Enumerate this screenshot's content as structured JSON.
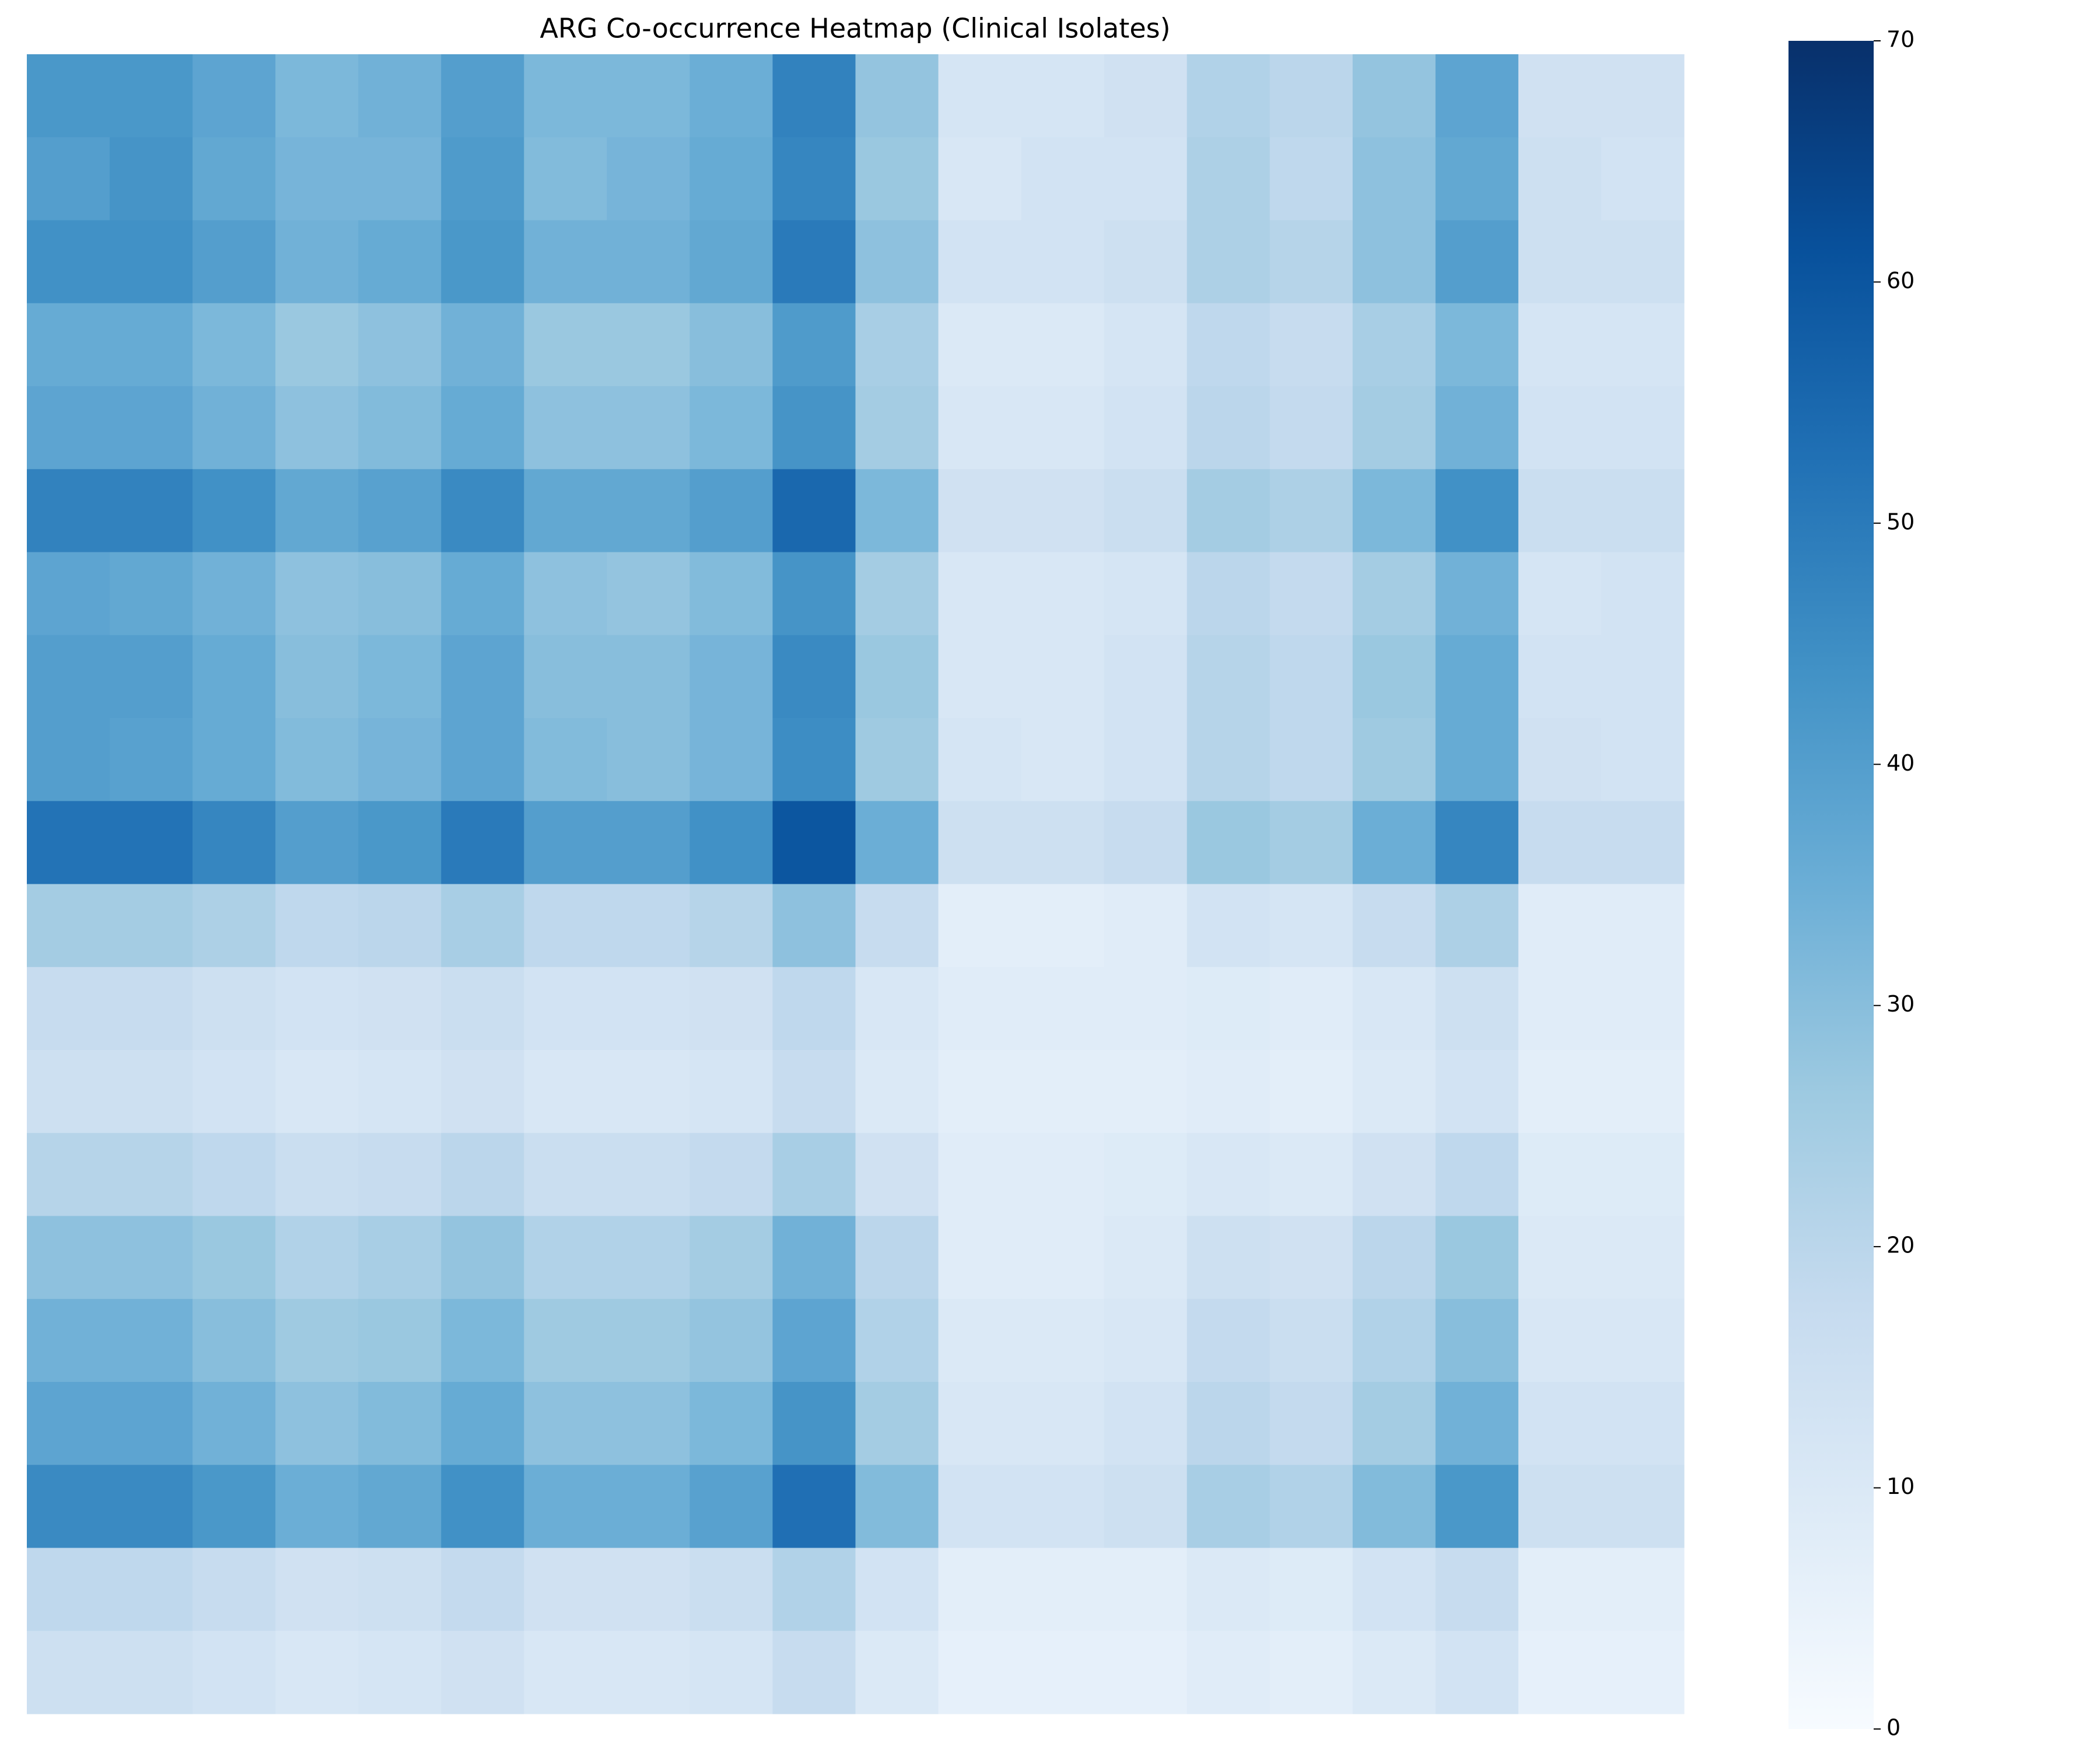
{
  "chart_data": {
    "type": "heatmap",
    "title": "ARG Co-occurrence Heatmap (Clinical Isolates)",
    "colormap": [
      "#f7fbff",
      "#deebf7",
      "#c6dbef",
      "#9ecae1",
      "#6baed6",
      "#4292c6",
      "#2171b5",
      "#08519c",
      "#08306b"
    ],
    "zlim": [
      0,
      70
    ],
    "zticks": [
      0,
      10,
      20,
      30,
      40,
      50,
      60,
      70
    ],
    "z": [
      [
        42,
        42,
        38,
        32,
        34,
        40,
        32,
        32,
        35,
        48,
        28,
        12,
        12,
        14,
        22,
        20,
        28,
        38,
        14,
        14
      ],
      [
        40,
        43,
        37,
        33,
        33,
        41,
        31,
        33,
        36,
        47,
        27,
        11,
        13,
        13,
        23,
        19,
        29,
        37,
        15,
        13
      ],
      [
        44,
        44,
        40,
        34,
        36,
        42,
        34,
        34,
        37,
        50,
        29,
        13,
        13,
        15,
        23,
        21,
        29,
        40,
        15,
        15
      ],
      [
        36,
        36,
        32,
        27,
        29,
        34,
        27,
        27,
        30,
        41,
        24,
        10,
        10,
        12,
        19,
        17,
        24,
        32,
        12,
        12
      ],
      [
        38,
        38,
        34,
        29,
        31,
        36,
        29,
        29,
        32,
        43,
        25,
        11,
        11,
        13,
        20,
        18,
        25,
        34,
        13,
        13
      ],
      [
        48,
        48,
        44,
        37,
        39,
        46,
        37,
        37,
        40,
        55,
        32,
        14,
        14,
        16,
        25,
        23,
        32,
        44,
        16,
        16
      ],
      [
        38,
        37,
        34,
        29,
        30,
        36,
        29,
        28,
        31,
        43,
        25,
        11,
        11,
        12,
        20,
        18,
        25,
        34,
        12,
        13
      ],
      [
        40,
        40,
        36,
        30,
        32,
        38,
        30,
        30,
        33,
        46,
        27,
        11,
        11,
        13,
        21,
        19,
        27,
        36,
        13,
        13
      ],
      [
        40,
        39,
        36,
        31,
        33,
        38,
        31,
        30,
        33,
        45,
        26,
        12,
        11,
        13,
        21,
        19,
        26,
        36,
        14,
        13
      ],
      [
        52,
        52,
        47,
        40,
        42,
        50,
        40,
        40,
        44,
        60,
        35,
        15,
        15,
        17,
        27,
        25,
        35,
        47,
        17,
        17
      ],
      [
        25,
        25,
        23,
        19,
        20,
        24,
        19,
        19,
        21,
        29,
        17,
        7,
        7,
        8,
        13,
        12,
        17,
        23,
        8,
        8
      ],
      [
        17,
        17,
        15,
        13,
        14,
        16,
        13,
        13,
        14,
        19,
        11,
        8,
        8,
        8,
        9,
        8,
        11,
        15,
        8,
        8
      ],
      [
        15,
        15,
        13,
        11,
        12,
        14,
        11,
        11,
        12,
        17,
        10,
        7,
        7,
        7,
        8,
        7,
        10,
        13,
        7,
        7
      ],
      [
        21,
        21,
        19,
        16,
        17,
        20,
        16,
        16,
        18,
        24,
        14,
        8,
        8,
        9,
        11,
        10,
        14,
        19,
        9,
        9
      ],
      [
        29,
        29,
        27,
        22,
        24,
        28,
        22,
        22,
        25,
        34,
        20,
        8,
        8,
        10,
        15,
        14,
        20,
        27,
        10,
        10
      ],
      [
        34,
        34,
        30,
        26,
        27,
        32,
        26,
        26,
        28,
        38,
        22,
        10,
        10,
        11,
        18,
        16,
        22,
        30,
        11,
        11
      ],
      [
        38,
        38,
        34,
        29,
        31,
        36,
        29,
        29,
        32,
        43,
        25,
        11,
        11,
        13,
        20,
        18,
        25,
        34,
        13,
        13
      ],
      [
        46,
        46,
        42,
        35,
        37,
        44,
        35,
        35,
        39,
        53,
        31,
        13,
        13,
        15,
        24,
        22,
        31,
        42,
        15,
        15
      ],
      [
        19,
        19,
        17,
        14,
        15,
        18,
        14,
        14,
        16,
        22,
        13,
        7,
        7,
        7,
        10,
        9,
        13,
        17,
        7,
        7
      ],
      [
        15,
        15,
        13,
        11,
        12,
        14,
        11,
        11,
        12,
        17,
        10,
        6,
        6,
        6,
        8,
        7,
        10,
        13,
        6,
        6
      ]
    ]
  }
}
